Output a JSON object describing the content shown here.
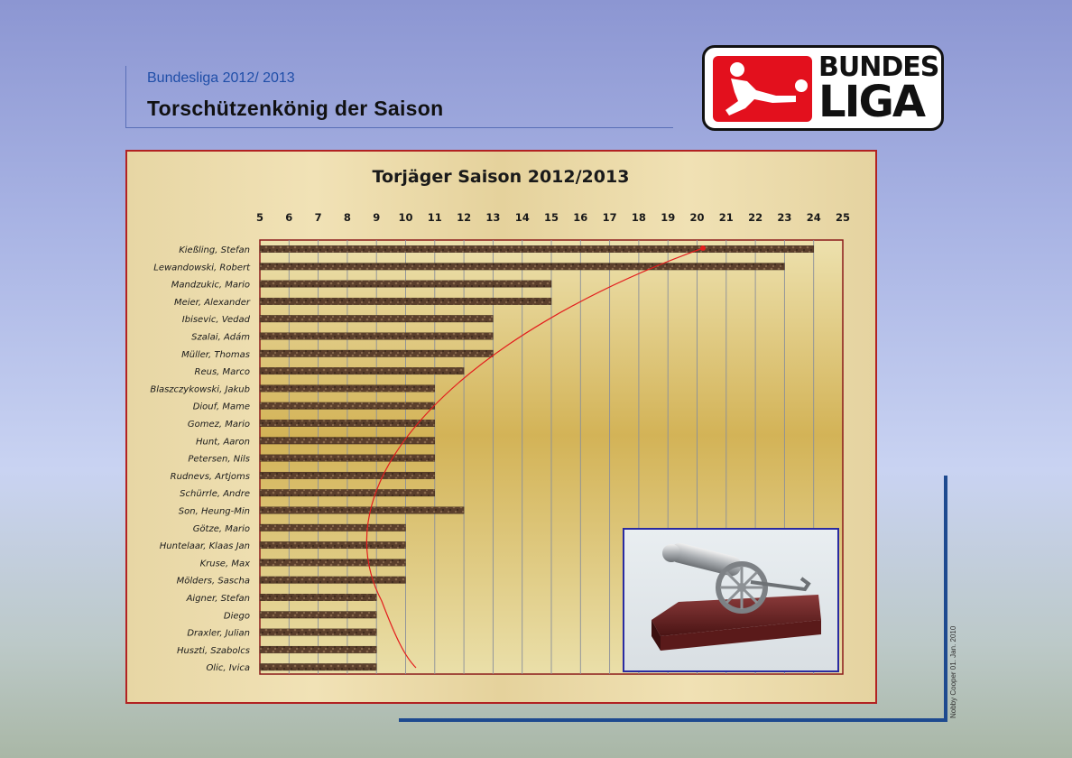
{
  "header": {
    "subtitle": "Bundesliga 2012/ 2013",
    "title": "Torschützenkönig der Saison"
  },
  "logo": {
    "line1": "BUNDES",
    "line2": "LIGA"
  },
  "credit": "Nobby Cooper  01. Jan. 2010",
  "colors": {
    "frame": "#b22222",
    "bar": "#5b3f2c",
    "plot": "#d8bb5e",
    "accent": "#1e4a8f",
    "curve": "#e31d1d"
  },
  "chart_data": {
    "type": "bar",
    "orientation": "horizontal",
    "title": "Torjäger Saison 2012/2013",
    "xlim": [
      5,
      25
    ],
    "xticks": [
      5,
      6,
      7,
      8,
      9,
      10,
      11,
      12,
      13,
      14,
      15,
      16,
      17,
      18,
      19,
      20,
      21,
      22,
      23,
      24,
      25
    ],
    "xaxis_position": "top",
    "grid": true,
    "categories": [
      "Kießling, Stefan",
      "Lewandowski, Robert",
      "Mandzukic, Mario",
      "Meier, Alexander",
      "Ibisevic, Vedad",
      "Szalai, Adám",
      "Müller, Thomas",
      "Reus, Marco",
      "Blaszczykowski, Jakub",
      "Diouf, Mame",
      "Gomez, Mario",
      "Hunt, Aaron",
      "Petersen, Nils",
      "Rudnevs, Artjoms",
      "Schürrle, Andre",
      "Son, Heung-Min",
      "Götze, Mario",
      "Huntelaar, Klaas Jan",
      "Kruse, Max",
      "Mölders, Sascha",
      "Aigner, Stefan",
      "Diego",
      "Draxler, Julian",
      "Huszti, Szabolcs",
      "Olic, Ivica"
    ],
    "values": [
      24,
      23,
      15,
      15,
      13,
      13,
      13,
      12,
      11,
      11,
      11,
      11,
      11,
      11,
      11,
      12,
      10,
      10,
      10,
      10,
      9,
      9,
      9,
      9,
      9
    ]
  }
}
